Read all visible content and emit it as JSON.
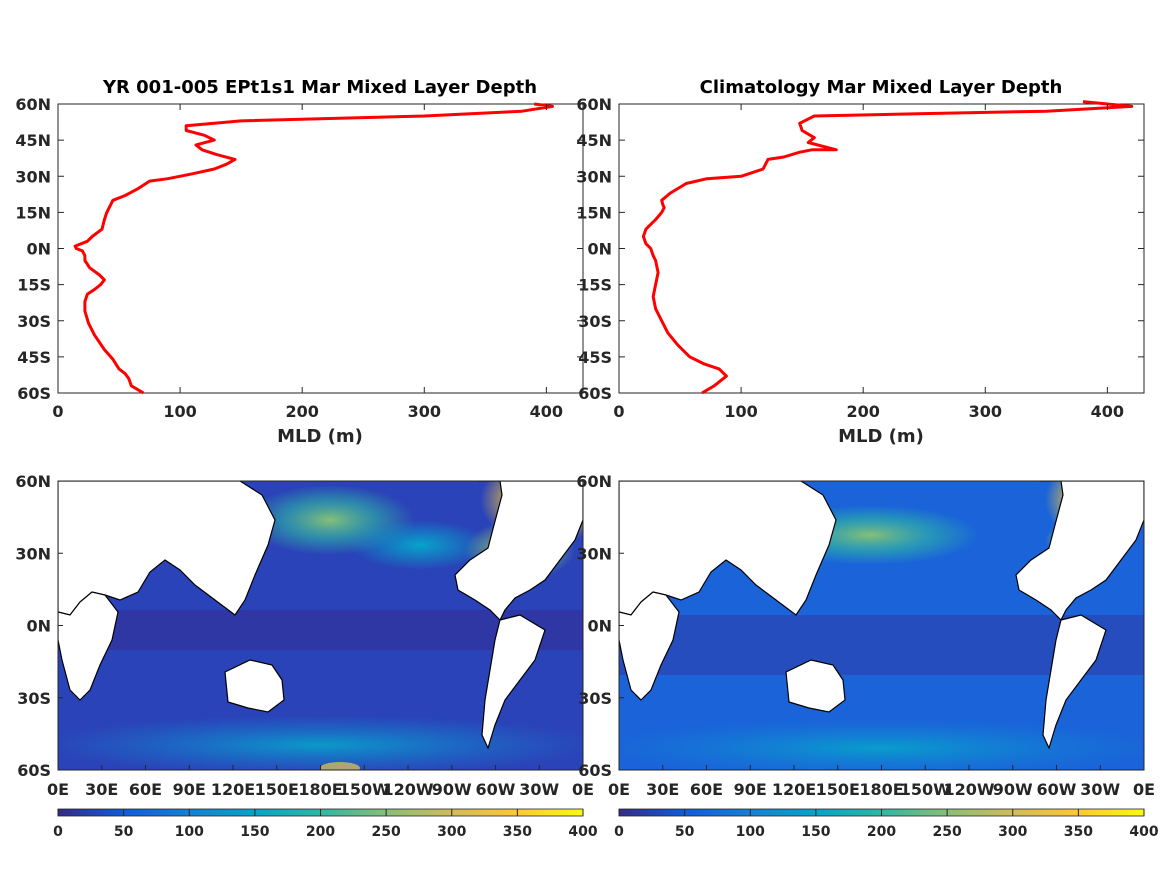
{
  "colors": {
    "line": "#ff0000",
    "parula": [
      "#352a87",
      "#0f5cdd",
      "#1481d6",
      "#06a4ca",
      "#2eb7a4",
      "#87bf77",
      "#d1bb59",
      "#fec832",
      "#f9fb0e"
    ]
  },
  "chart_data": [
    {
      "type": "line",
      "title": "YR 001-005 EPt1s1 Mar Mixed Layer Depth",
      "xlabel": "MLD (m)",
      "xlim": [
        0,
        430
      ],
      "ylim": [
        -60,
        60
      ],
      "xticks": [
        "0",
        "100",
        "200",
        "300",
        "400"
      ],
      "yticks": [
        "60N",
        "45N",
        "30N",
        "15N",
        "0N",
        "15S",
        "30S",
        "45S",
        "60S"
      ],
      "series": [
        {
          "x": [
            70,
            60,
            58,
            55,
            50,
            45,
            38,
            30,
            25,
            22,
            22,
            24,
            30,
            35,
            38,
            34,
            26,
            22,
            22,
            20,
            15,
            14,
            24,
            28,
            36,
            38,
            40,
            45,
            55,
            66,
            75,
            90,
            110,
            128,
            138,
            145,
            130,
            118,
            113,
            128,
            120,
            105,
            105,
            150,
            300,
            380,
            405,
            390
          ],
          "y": [
            -60,
            -57,
            -54,
            -52,
            -50,
            -46,
            -42,
            -36,
            -31,
            -26,
            -22,
            -19,
            -17,
            -15,
            -13,
            -11,
            -8,
            -5,
            -3,
            -1,
            0,
            1,
            3,
            5,
            8,
            12,
            15,
            20,
            22,
            25,
            28,
            29,
            31,
            33,
            35,
            37,
            39,
            41,
            43,
            45,
            47,
            49,
            51,
            53,
            55,
            57,
            59,
            60
          ]
        }
      ]
    },
    {
      "type": "line",
      "title": "Climatology Mar Mixed Layer Depth",
      "xlabel": "MLD (m)",
      "xlim": [
        0,
        430
      ],
      "ylim": [
        -60,
        60
      ],
      "xticks": [
        "0",
        "100",
        "200",
        "300",
        "400"
      ],
      "yticks": [
        "60N",
        "45N",
        "30N",
        "15N",
        "0N",
        "15S",
        "30S",
        "45S",
        "60S"
      ],
      "series": [
        {
          "x": [
            68,
            78,
            88,
            82,
            70,
            58,
            48,
            40,
            35,
            30,
            28,
            30,
            32,
            30,
            28,
            26,
            24,
            22,
            20,
            22,
            30,
            35,
            37,
            36,
            35,
            42,
            55,
            72,
            100,
            118,
            122,
            135,
            148,
            158,
            178,
            155,
            160,
            150,
            148,
            160,
            250,
            350,
            420,
            400,
            380
          ],
          "y": [
            -60,
            -57,
            -53,
            -50,
            -48,
            -45,
            -40,
            -35,
            -30,
            -25,
            -20,
            -15,
            -10,
            -5,
            -3,
            0,
            1,
            2,
            5,
            8,
            12,
            15,
            17,
            18,
            20,
            23,
            27,
            29,
            30,
            33,
            37,
            38,
            40,
            41,
            41,
            44,
            46,
            49,
            52,
            55,
            56,
            57,
            59,
            60,
            61
          ]
        }
      ]
    },
    {
      "type": "heatmap",
      "title": "",
      "xticks": [
        "0E",
        "30E",
        "60E",
        "90E",
        "120E",
        "150E",
        "180E",
        "150W",
        "120W",
        "90W",
        "60W",
        "30W",
        "0E"
      ],
      "yticks": [
        "60N",
        "30N",
        "0N",
        "30S",
        "60S"
      ],
      "colorbar": {
        "ticks": [
          "0",
          "50",
          "100",
          "150",
          "200",
          "250",
          "300",
          "350",
          "400"
        ],
        "range": [
          0,
          400
        ]
      }
    },
    {
      "type": "heatmap",
      "title": "",
      "xticks": [
        "0E",
        "30E",
        "60E",
        "90E",
        "120E",
        "150E",
        "180E",
        "150W",
        "120W",
        "90W",
        "60W",
        "30W",
        "0E"
      ],
      "yticks": [
        "60N",
        "30N",
        "0N",
        "30S",
        "60S"
      ],
      "colorbar": {
        "ticks": [
          "0",
          "50",
          "100",
          "150",
          "200",
          "250",
          "300",
          "350",
          "400"
        ],
        "range": [
          0,
          400
        ]
      }
    }
  ]
}
